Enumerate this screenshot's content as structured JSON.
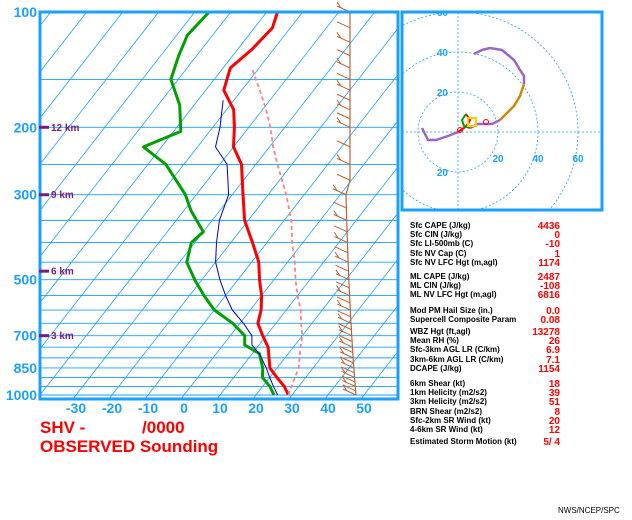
{
  "title": {
    "line1": "SHV -            /0000",
    "line2": "OBSERVED Sounding"
  },
  "credit": "NWS/NCEP/SPC",
  "colors": {
    "frame": "#1aa0ff",
    "temperature": "#ff0000",
    "dewpoint": "#00a000",
    "parcel": "#ff8080",
    "wetbulb": "#0000cc",
    "height": "#7a1a7a",
    "wind": "#c06030",
    "hodo_purple": "#9966cc",
    "hodo_yellow": "#ffcc00",
    "hodo_orange": "#cc8800"
  },
  "chart_data": {
    "type": "skew-t log-p sounding",
    "pressure_ticks": [
      "100",
      "200",
      "300",
      "500",
      "700",
      "850",
      "1000"
    ],
    "pressure_values": [
      100,
      200,
      300,
      500,
      700,
      850,
      1000
    ],
    "temperature_ticks": [
      "-30",
      "-20",
      "-10",
      "0",
      "10",
      "20",
      "30",
      "40",
      "50"
    ],
    "temperature_values": [
      -30,
      -20,
      -10,
      0,
      10,
      20,
      30,
      40,
      50
    ],
    "height_labels": [
      {
        "text": "12 km",
        "p": 200
      },
      {
        "text": "9 km",
        "p": 300
      },
      {
        "text": "6 km",
        "p": 475
      },
      {
        "text": "3 km",
        "p": 700
      }
    ],
    "series": [
      {
        "key": "temperature",
        "points": [
          [
            29,
            1000
          ],
          [
            26,
            950
          ],
          [
            22,
            900
          ],
          [
            18,
            850
          ],
          [
            13,
            750
          ],
          [
            9,
            700
          ],
          [
            5,
            650
          ],
          [
            3,
            600
          ],
          [
            0,
            550
          ],
          [
            -4,
            500
          ],
          [
            -8,
            450
          ],
          [
            -14,
            400
          ],
          [
            -21,
            350
          ],
          [
            -27,
            300
          ],
          [
            -34,
            250
          ],
          [
            -40,
            225
          ],
          [
            -44,
            200
          ],
          [
            -48,
            180
          ],
          [
            -55,
            160
          ],
          [
            -58,
            140
          ],
          [
            -56,
            125
          ],
          [
            -55,
            110
          ],
          [
            -57,
            100
          ]
        ]
      },
      {
        "key": "dewpoint",
        "points": [
          [
            25,
            1000
          ],
          [
            22,
            950
          ],
          [
            18,
            900
          ],
          [
            16,
            850
          ],
          [
            12,
            780
          ],
          [
            6,
            740
          ],
          [
            4,
            700
          ],
          [
            -2,
            650
          ],
          [
            -10,
            600
          ],
          [
            -16,
            550
          ],
          [
            -22,
            500
          ],
          [
            -28,
            450
          ],
          [
            -31,
            400
          ],
          [
            -30,
            375
          ],
          [
            -38,
            330
          ],
          [
            -43,
            300
          ],
          [
            -55,
            250
          ],
          [
            -65,
            225
          ],
          [
            -58,
            205
          ],
          [
            -64,
            175
          ],
          [
            -72,
            150
          ],
          [
            -75,
            130
          ],
          [
            -77,
            115
          ],
          [
            -76,
            100
          ]
        ]
      },
      {
        "key": "wetbulb",
        "points": [
          [
            26,
            1000
          ],
          [
            23,
            950
          ],
          [
            20,
            900
          ],
          [
            17,
            850
          ],
          [
            12,
            780
          ],
          [
            8,
            740
          ],
          [
            6,
            700
          ],
          [
            1,
            650
          ],
          [
            -5,
            600
          ],
          [
            -10,
            550
          ],
          [
            -15,
            500
          ],
          [
            -20,
            450
          ],
          [
            -24,
            400
          ],
          [
            -28,
            350
          ],
          [
            -31,
            300
          ],
          [
            -38,
            250
          ],
          [
            -45,
            225
          ],
          [
            -48,
            200
          ],
          [
            -53,
            170
          ]
        ]
      },
      {
        "key": "parcel",
        "points": [
          [
            29,
            1000
          ],
          [
            28,
            950
          ],
          [
            27,
            900
          ],
          [
            26,
            850
          ],
          [
            22,
            750
          ],
          [
            20,
            700
          ],
          [
            17,
            650
          ],
          [
            14,
            600
          ],
          [
            10,
            550
          ],
          [
            6,
            500
          ],
          [
            2,
            450
          ],
          [
            -3,
            400
          ],
          [
            -8,
            350
          ],
          [
            -15,
            300
          ],
          [
            -24,
            250
          ],
          [
            -29,
            225
          ],
          [
            -34,
            200
          ],
          [
            -39,
            180
          ],
          [
            -45,
            160
          ],
          [
            -52,
            140
          ]
        ]
      }
    ],
    "wind_barbs": "wind barbs plotted along the right edge, 1000 mb to 100 mb",
    "hodograph": {
      "rings": [
        20,
        40,
        60
      ],
      "ring_labels": [
        "20",
        "40",
        "60"
      ],
      "x_labels": [
        "20",
        "40",
        "60"
      ],
      "y_labels": [
        "60",
        "40",
        "20",
        "20"
      ],
      "trace": [
        [
          -18,
          2
        ],
        [
          -16,
          -2
        ],
        [
          -15,
          -4
        ],
        [
          -11,
          -4
        ],
        [
          -5,
          -2
        ],
        [
          0,
          0
        ],
        [
          3,
          2
        ],
        [
          5,
          4
        ],
        [
          6,
          6
        ],
        [
          4,
          9
        ],
        [
          2,
          6
        ],
        [
          3,
          3
        ],
        [
          6,
          2
        ],
        [
          10,
          4
        ],
        [
          13,
          4
        ],
        [
          17,
          4
        ],
        [
          21,
          6
        ],
        [
          25,
          10
        ],
        [
          28,
          13
        ],
        [
          31,
          18
        ],
        [
          33,
          24
        ],
        [
          33,
          28
        ],
        [
          31,
          31
        ],
        [
          28,
          36
        ],
        [
          22,
          41
        ],
        [
          16,
          42
        ],
        [
          12,
          41
        ],
        [
          8,
          39
        ]
      ]
    },
    "storm_motion": "5/ 4"
  },
  "parameters": {
    "group1": [
      {
        "label": "Sfc CAPE (J/kg)",
        "value": "4436"
      },
      {
        "label": "Sfc CIN (J/kg)",
        "value": "0"
      },
      {
        "label": "Sfc LI-500mb (C)",
        "value": "-10"
      },
      {
        "label": "Sfc NV Cap (C)",
        "value": "1"
      },
      {
        "label": "Sfc NV LFC Hgt (m,agl)",
        "value": "1174"
      }
    ],
    "group2": [
      {
        "label": "ML CAPE (J/kg)",
        "value": "2487"
      },
      {
        "label": "ML CIN (J/kg)",
        "value": "-108"
      },
      {
        "label": "ML NV LFC Hgt (m,agl)",
        "value": "6816"
      }
    ],
    "group3": [
      {
        "label": "Mod PM Hail Size (in.)",
        "value": "0.0"
      },
      {
        "label": "Supercell Composite Param",
        "value": "0.08"
      }
    ],
    "group4": [
      {
        "label": "WBZ Hgt (ft,agl)",
        "value": "13278"
      },
      {
        "label": "Mean RH (%)",
        "value": "26"
      },
      {
        "label": "Sfc-3km AGL LR (C/km)",
        "value": "6.9"
      },
      {
        "label": "3km-6km AGL LR (C/km)",
        "value": "7.1"
      },
      {
        "label": "DCAPE (J/kg)",
        "value": "1154"
      }
    ],
    "group5": [
      {
        "label": "6km Shear (kt)",
        "value": "18"
      },
      {
        "label": "1km Helicity (m2/s2)",
        "value": "39"
      },
      {
        "label": "3km Helicity (m2/s2)",
        "value": "51"
      },
      {
        "label": "BRN Shear (m2/s2)",
        "value": "8"
      },
      {
        "label": "Sfc-2km SR Wind (kt)",
        "value": "20"
      },
      {
        "label": "4-6km SR Wind (kt)",
        "value": "12"
      }
    ],
    "storm_motion_label": "Estimated Storm Motion (kt)"
  }
}
